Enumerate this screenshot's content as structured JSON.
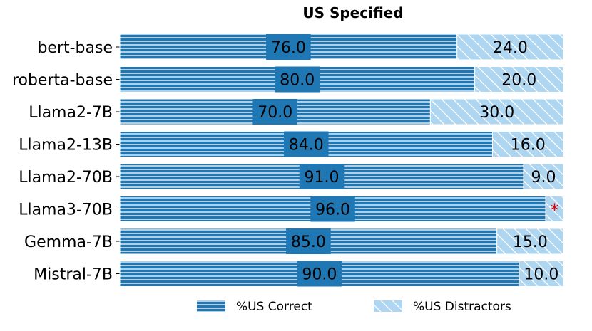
{
  "chart_data": {
    "type": "bar",
    "orientation": "horizontal",
    "stacked": true,
    "title": "US Specified",
    "categories": [
      "bert-base",
      "roberta-base",
      "Llama2-7B",
      "Llama2-13B",
      "Llama2-70B",
      "Llama3-70B",
      "Gemma-7B",
      "Mistral-7B"
    ],
    "series": [
      {
        "name": "%US Correct",
        "values": [
          76.0,
          80.0,
          70.0,
          84.0,
          91.0,
          96.0,
          85.0,
          90.0
        ],
        "labels": [
          "76.0",
          "80.0",
          "70.0",
          "84.0",
          "91.0",
          "96.0",
          "85.0",
          "90.0"
        ],
        "color": "#1f77b4",
        "pattern": "horizontal-lines"
      },
      {
        "name": "%US Distractors",
        "values": [
          24.0,
          20.0,
          30.0,
          16.0,
          9.0,
          4.0,
          15.0,
          10.0
        ],
        "labels": [
          "24.0",
          "20.0",
          "30.0",
          "16.0",
          "9.0",
          "*",
          "15.0",
          "10.0"
        ],
        "color": "#aed6f1",
        "pattern": "diagonal-lines"
      }
    ],
    "annotation_color": "#e00000",
    "xlim": [
      0,
      100
    ],
    "grid": false,
    "legend_position": "bottom"
  }
}
